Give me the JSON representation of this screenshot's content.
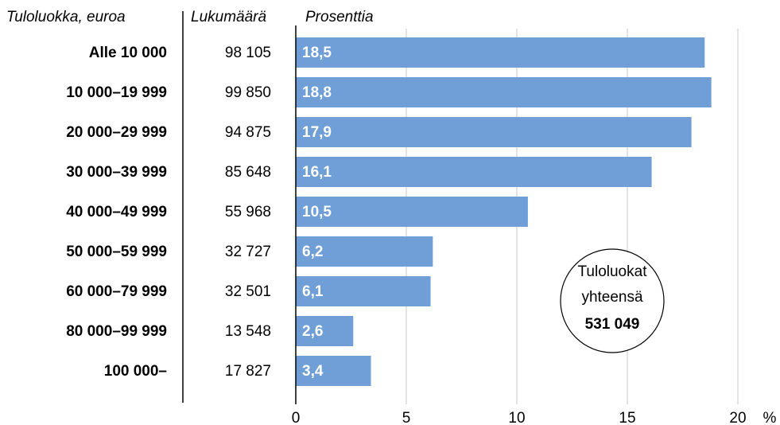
{
  "chart_data": {
    "type": "bar",
    "orientation": "horizontal",
    "column_headers": [
      "Tuloluokka, euroa",
      "Lukumäärä",
      "Prosenttia"
    ],
    "categories": [
      "Alle 10 000",
      "10 000–19 999",
      "20 000–29 999",
      "30 000–39 999",
      "40 000–49 999",
      "50 000–59 999",
      "60 000–79 999",
      "80 000–99 999",
      "100 000–"
    ],
    "counts": [
      "98 105",
      "99 850",
      "94 875",
      "85 648",
      "55 968",
      "32 727",
      "32 501",
      "13 548",
      "17 827"
    ],
    "values": [
      18.5,
      18.8,
      17.9,
      16.1,
      10.5,
      6.2,
      6.1,
      2.6,
      3.4
    ],
    "value_labels": [
      "18,5",
      "18,8",
      "17,9",
      "16,1",
      "10,5",
      "6,2",
      "6,1",
      "2,6",
      "3,4"
    ],
    "color": "#6f9fd6",
    "xlim": [
      0,
      20
    ],
    "xticks": [
      0,
      5,
      10,
      15,
      20
    ],
    "x_unit": "%",
    "grid": true,
    "annotation": {
      "lines": [
        "Tuloluokat",
        "yhteensä"
      ],
      "total": "531 049"
    }
  }
}
